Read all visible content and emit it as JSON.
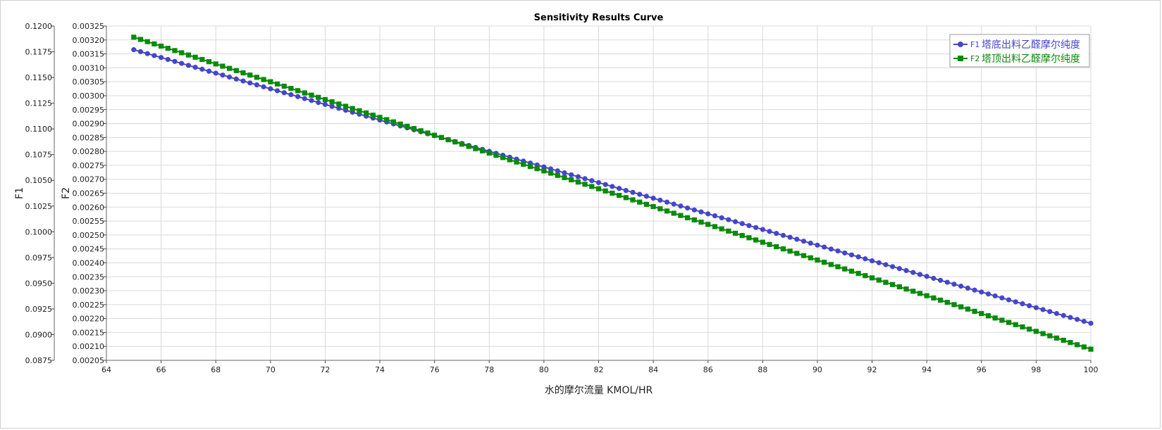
{
  "chart_data": {
    "type": "line",
    "title": "Sensitivity Results Curve",
    "xlabel": "水的摩尔流量 KMOL/HR",
    "y1label": "F1",
    "y2label": "F2",
    "xlim": [
      64,
      100
    ],
    "xticks": [
      64,
      66,
      68,
      70,
      72,
      74,
      76,
      78,
      80,
      82,
      84,
      86,
      88,
      90,
      92,
      94,
      96,
      98,
      100
    ],
    "y1lim": [
      0.0875,
      0.12
    ],
    "y1ticks": [
      "0.0875",
      "0.0900",
      "0.0925",
      "0.0950",
      "0.0975",
      "0.1000",
      "0.1025",
      "0.1050",
      "0.1075",
      "0.1100",
      "0.1125",
      "0.1150",
      "0.1175",
      "0.1200"
    ],
    "y2lim": [
      0.00205,
      0.00325
    ],
    "y2ticks": [
      "0.00205",
      "0.00210",
      "0.00215",
      "0.00220",
      "0.00225",
      "0.00230",
      "0.00235",
      "0.00240",
      "0.00245",
      "0.00250",
      "0.00255",
      "0.00260",
      "0.00265",
      "0.00270",
      "0.00275",
      "0.00280",
      "0.00285",
      "0.00290",
      "0.00295",
      "0.00300",
      "0.00305",
      "0.00310",
      "0.00315",
      "0.00320",
      "0.00325"
    ],
    "grid": true,
    "legend_position": "top-right",
    "x": [
      65,
      100
    ],
    "point_spacing": 0.25,
    "series": [
      {
        "tag": "F1",
        "name": "塔底出料乙醛摩尔纯度",
        "axis": "y1",
        "marker": "circle",
        "color": "#4646c8",
        "x": [
          65,
          100
        ],
        "y": [
          0.1177,
          0.0911
        ]
      },
      {
        "tag": "F2",
        "name": "塔顶出料乙醛摩尔纯度",
        "axis": "y2",
        "marker": "square",
        "color": "#0a8a0a",
        "x": [
          65,
          100
        ],
        "y": [
          0.00321,
          0.00209
        ]
      }
    ]
  }
}
